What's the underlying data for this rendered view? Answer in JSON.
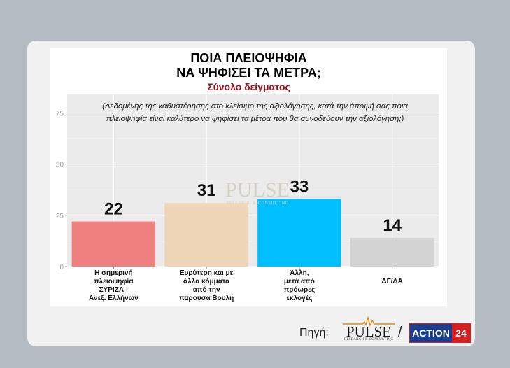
{
  "chart_data": {
    "type": "bar",
    "title_lines": [
      "ΠΟΙΑ ΠΛΕΙΟΨΗΦΙΑ",
      "ΝΑ ΨΗΦΙΣΕΙ ΤΑ ΜΕΤΡΑ;"
    ],
    "subtitle": "Σύνολο δείγματος",
    "note_lines": [
      "(Δεδομένης της καθυστέρησης στο κλείσιμο της αξιολόγησης, κατά την άποψή σας ποια",
      "πλειοψηφία είναι καλύτερο να ψηφίσει τα μέτρα που θα συνοδεύουν την αξιολόγηση;)"
    ],
    "categories": [
      [
        "Η σημερινή",
        "πλειοψηφία",
        "ΣΥΡΙΖΑ -",
        "Ανεξ. Ελλήνων"
      ],
      [
        "Ευρύτερη και με",
        "άλλα κόμματα",
        "από την",
        "παρούσα Βουλή"
      ],
      [
        "Άλλη,",
        "μετά από",
        "πρόωρες",
        "εκλογές"
      ],
      [
        "ΔΓ/ΔΑ"
      ]
    ],
    "values": [
      22,
      31,
      33,
      14
    ],
    "value_labels": [
      "22",
      "31",
      "33",
      "14"
    ],
    "colors": [
      "#f08080",
      "#efd6b8",
      "#00bfff",
      "#d3d3d3"
    ],
    "yticks": [
      "0",
      "25",
      "50",
      "75"
    ],
    "ylim": [
      0,
      84
    ],
    "xlabel": "",
    "ylabel": "",
    "grid": true
  },
  "watermark": {
    "word": "PULSE",
    "sub": "RESEARCH & CONSULTING"
  },
  "source": {
    "label": "Πηγή:",
    "pulse_word": "PULSE",
    "pulse_sub": "RESEARCH & CONSULTING",
    "separator": "/",
    "action_text": "ACTION",
    "action_num": "24"
  }
}
